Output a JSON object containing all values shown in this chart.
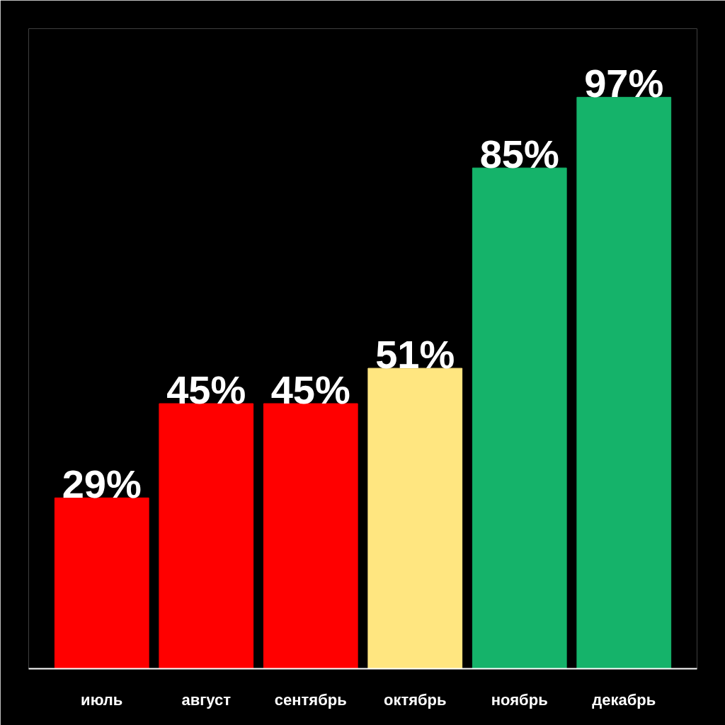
{
  "chart_data": {
    "type": "bar",
    "categories": [
      "июль",
      "август",
      "сентябрь",
      "октябрь",
      "ноябрь",
      "декабрь"
    ],
    "values": [
      29,
      45,
      45,
      51,
      85,
      97
    ],
    "colors": [
      "#ff0000",
      "#ff0000",
      "#ff0000",
      "#ffe680",
      "#15b36a",
      "#15b36a"
    ],
    "value_labels": [
      "29%",
      "45%",
      "45%",
      "51%",
      "85%",
      "97%"
    ],
    "grid": false,
    "tick_labels": "x"
  }
}
